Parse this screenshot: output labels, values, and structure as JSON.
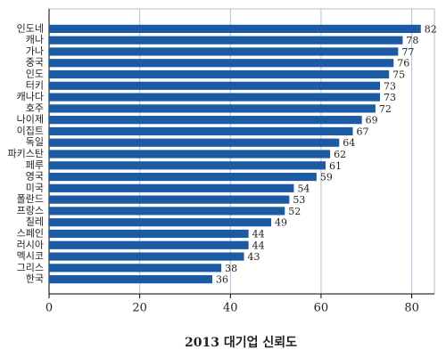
{
  "chart_data": {
    "type": "bar",
    "orientation": "horizontal",
    "title": "2013 대기업 신뢰도",
    "categories": [
      "인도네",
      "캐나",
      "가나",
      "중국",
      "인도",
      "터키",
      "캐나다",
      "호주",
      "나이제",
      "이집트",
      "독일",
      "파키스탄",
      "페루",
      "영국",
      "미국",
      "폴란드",
      "프랑스",
      "칠레",
      "스페인",
      "러시아",
      "멕시코",
      "그리스",
      "한국"
    ],
    "values": [
      82,
      78,
      77,
      76,
      75,
      73,
      73,
      72,
      69,
      67,
      64,
      62,
      61,
      59,
      54,
      53,
      52,
      49,
      44,
      44,
      43,
      38,
      36
    ],
    "color": "#1b5ba3",
    "xlim": [
      0,
      85
    ],
    "xticks": [
      0,
      20,
      40,
      60,
      80
    ],
    "grid": true
  }
}
